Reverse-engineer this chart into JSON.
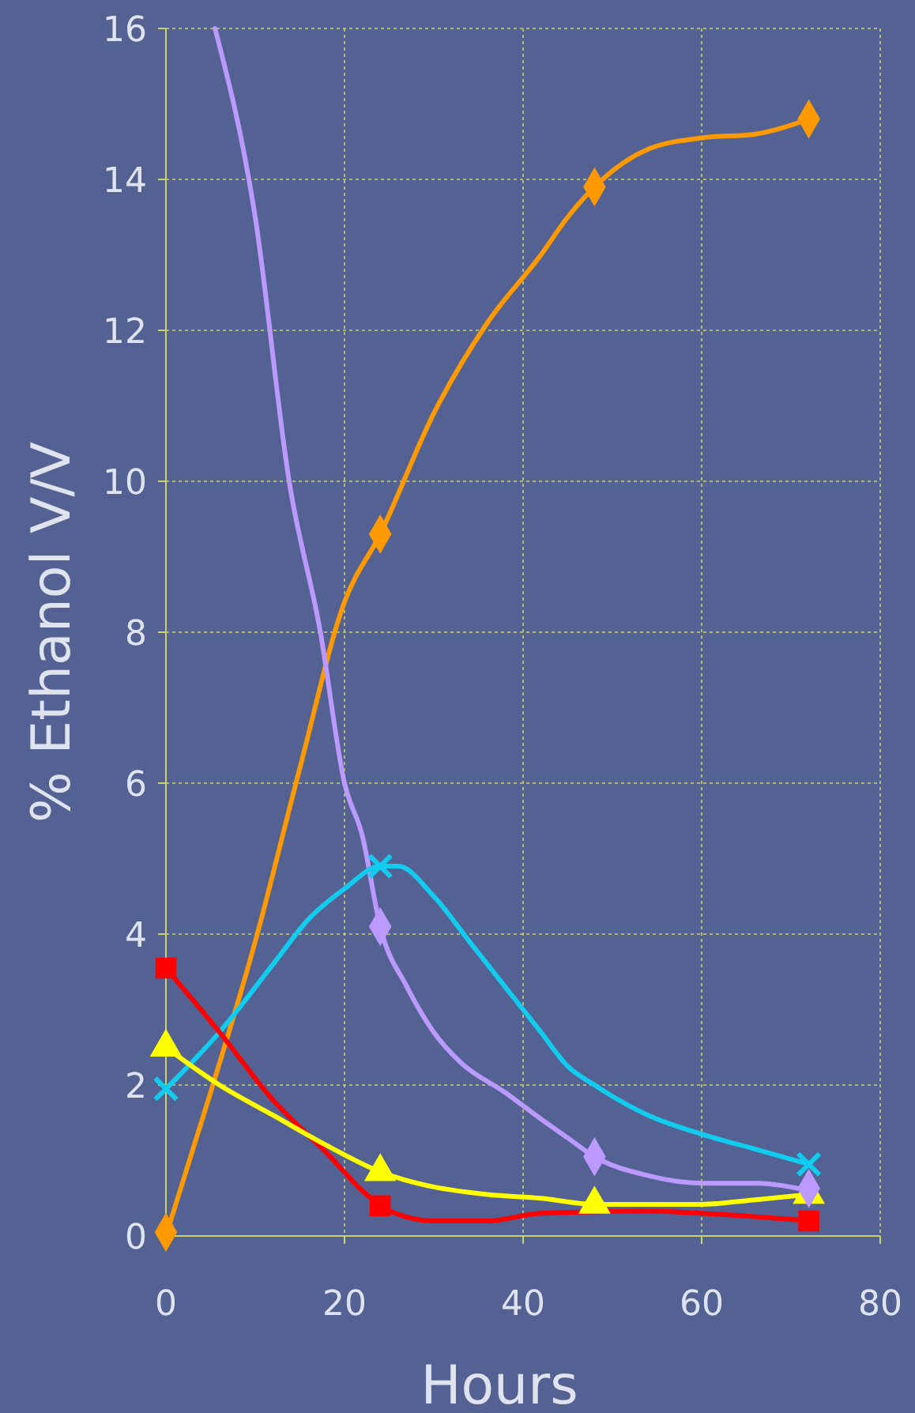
{
  "chart_data": {
    "type": "line",
    "xlabel": "Hours",
    "ylabel": "% Ethanol V/V",
    "xlim": [
      0,
      80
    ],
    "ylim": [
      0,
      16
    ],
    "xticks": [
      0,
      20,
      40,
      60,
      80
    ],
    "yticks": [
      0,
      2,
      4,
      6,
      8,
      10,
      12,
      14,
      16
    ],
    "grid": true,
    "line_style": "solid",
    "series": [
      {
        "type": "line",
        "marker": "none",
        "color": "#ff9900",
        "x": [
          0,
          5,
          10,
          15,
          20,
          24,
          30,
          36,
          42,
          45,
          48,
          54,
          60,
          66,
          72
        ],
        "values": [
          0,
          1.9,
          3.9,
          6.2,
          8.4,
          9.3,
          10.9,
          12.1,
          13,
          13.5,
          13.9,
          14.4,
          14.55,
          14.6,
          14.8
        ]
      },
      {
        "type": "scatter",
        "marker": "diamond",
        "color": "#ff9900",
        "x": [
          0,
          24,
          48,
          72
        ],
        "values": [
          0.05,
          9.3,
          13.9,
          14.8
        ]
      },
      {
        "type": "line",
        "marker": "none",
        "color": "#bb99ff",
        "x": [
          5.5,
          10,
          13.8,
          17.3,
          20,
          22,
          24,
          27,
          30,
          33,
          38,
          42,
          45,
          48,
          54,
          60,
          66,
          72
        ],
        "values": [
          16,
          13.5,
          10,
          8,
          6,
          5.3,
          4.1,
          3.3,
          2.7,
          2.3,
          1.9,
          1.55,
          1.3,
          1.05,
          0.8,
          0.7,
          0.7,
          0.6
        ]
      },
      {
        "type": "line",
        "marker": "none",
        "color": "#11ccee",
        "x": [
          0,
          6,
          12,
          16,
          20,
          24,
          26,
          30,
          34,
          38,
          42,
          45,
          48,
          54,
          60,
          66,
          72
        ],
        "values": [
          1.95,
          2.7,
          3.6,
          4.2,
          4.6,
          4.9,
          4.9,
          4.5,
          3.9,
          3.3,
          2.7,
          2.25,
          2,
          1.6,
          1.35,
          1.15,
          0.95
        ]
      },
      {
        "type": "scatter",
        "marker": "cross",
        "color": "#11ccee",
        "x": [
          0,
          24,
          72
        ],
        "values": [
          1.95,
          4.9,
          0.95
        ]
      },
      {
        "type": "line",
        "marker": "none",
        "color": "#ff0000",
        "x": [
          0,
          6,
          12,
          18,
          22,
          24,
          27,
          30,
          36,
          42,
          54,
          60,
          72
        ],
        "values": [
          3.55,
          2.7,
          1.8,
          1.1,
          0.6,
          0.4,
          0.25,
          0.2,
          0.2,
          0.3,
          0.33,
          0.3,
          0.2
        ]
      },
      {
        "type": "scatter",
        "marker": "square",
        "color": "#ff0000",
        "x": [
          0,
          24,
          72
        ],
        "values": [
          3.55,
          0.4,
          0.2
        ]
      },
      {
        "type": "line",
        "marker": "none",
        "color": "#ffff00",
        "x": [
          0,
          6,
          12,
          18,
          24,
          30,
          36,
          42,
          48,
          60,
          66,
          72
        ],
        "values": [
          2.5,
          2,
          1.6,
          1.2,
          0.85,
          0.65,
          0.55,
          0.5,
          0.42,
          0.42,
          0.48,
          0.55
        ]
      },
      {
        "type": "scatter",
        "marker": "triangle",
        "color": "#ffff00",
        "x": [
          0,
          24,
          48,
          72
        ],
        "values": [
          2.5,
          0.85,
          0.42,
          0.55
        ]
      },
      {
        "type": "scatter",
        "marker": "diamond",
        "color": "#bb99ff",
        "x": [
          24,
          48,
          72
        ],
        "values": [
          4.1,
          1.05,
          0.63
        ]
      }
    ]
  }
}
